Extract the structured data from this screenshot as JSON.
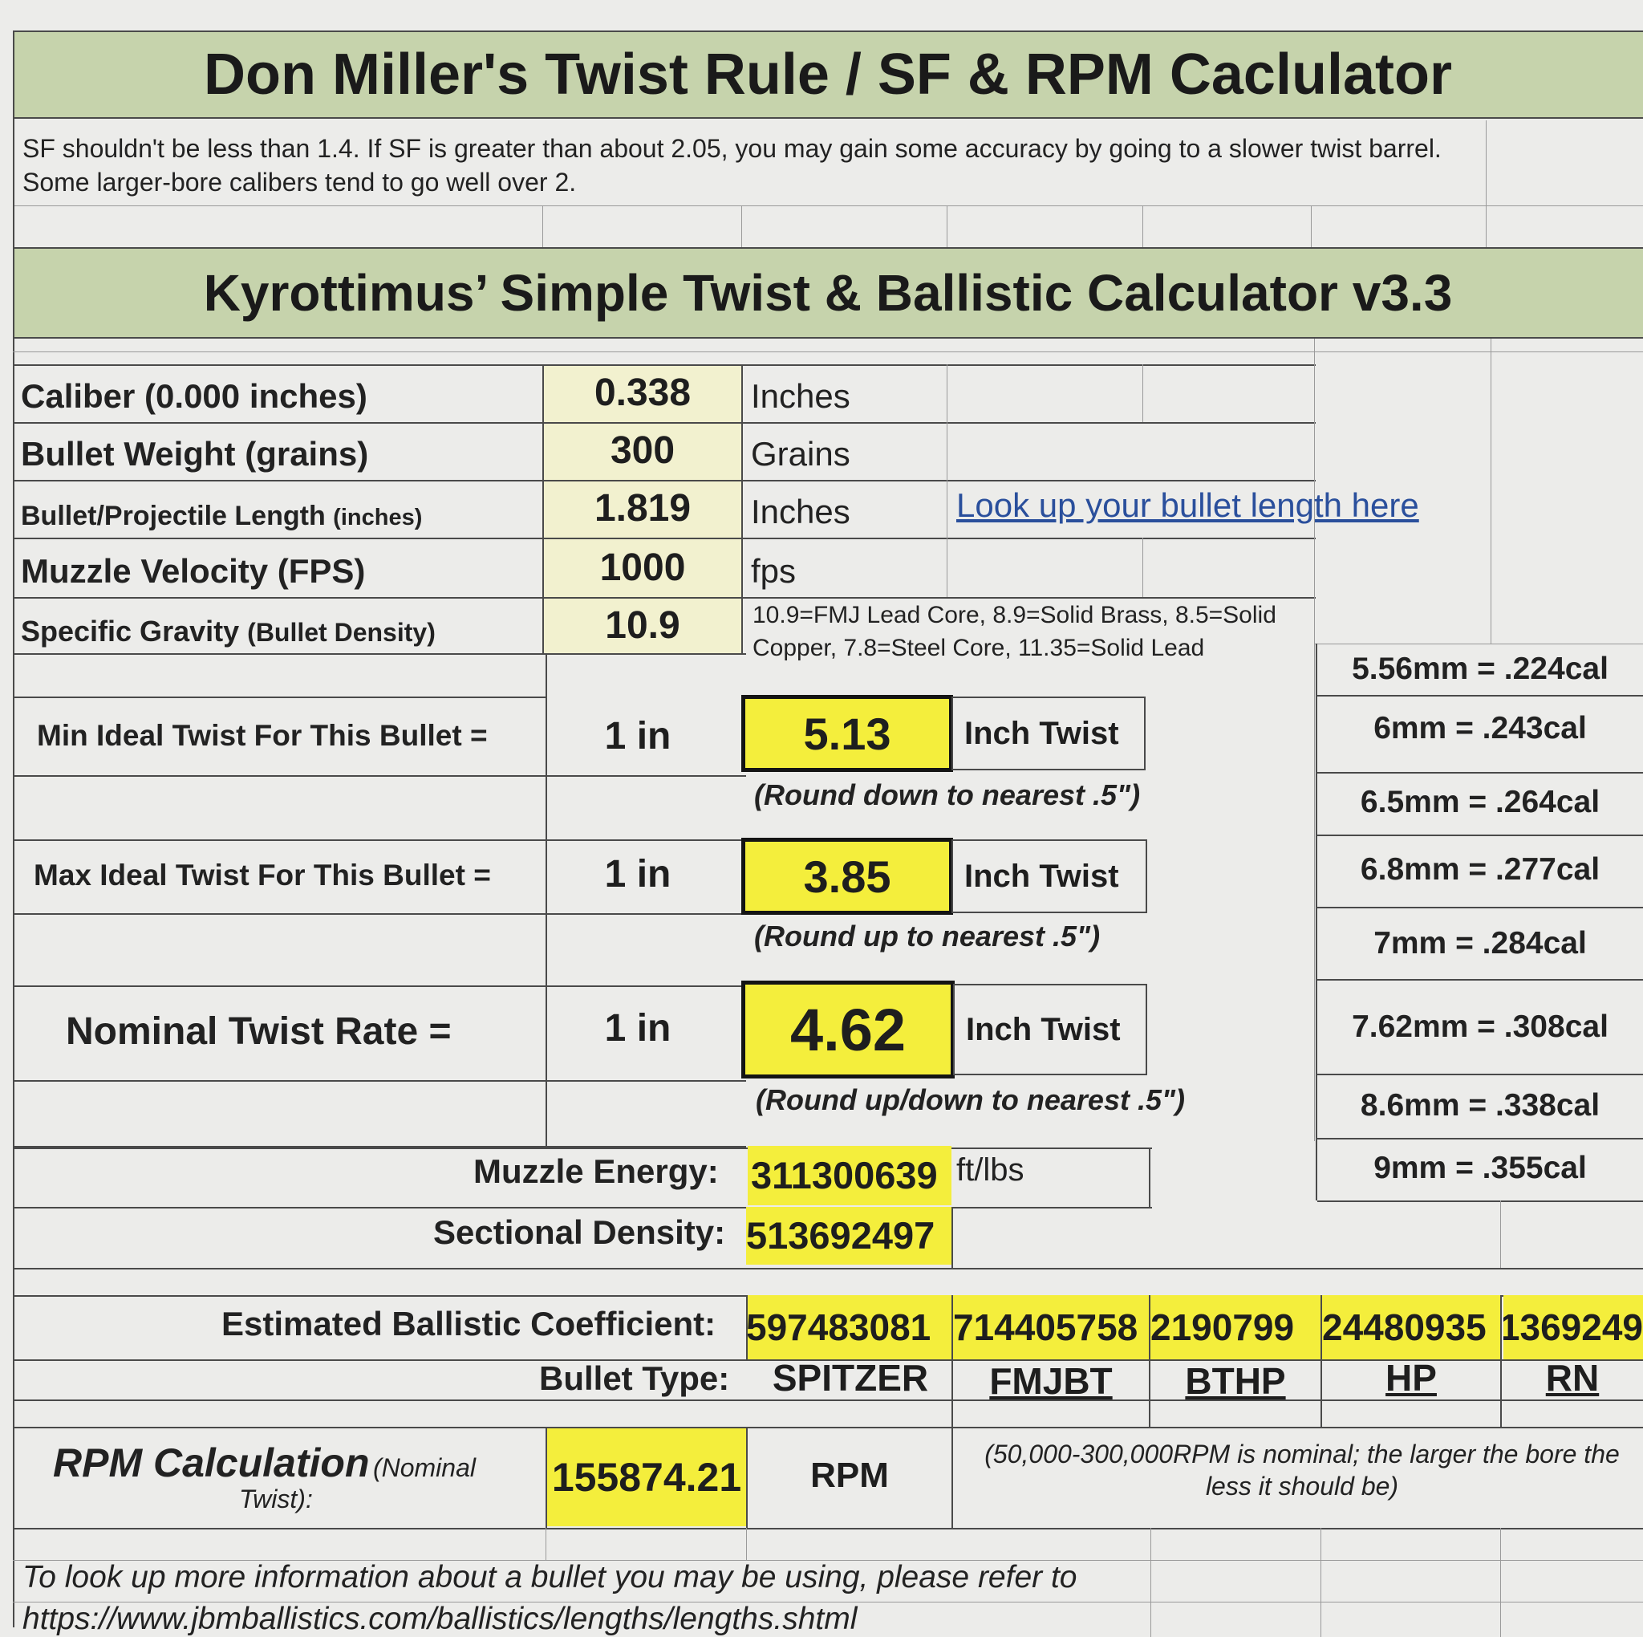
{
  "header": {
    "title": "Don Miller's Twist Rule / SF & RPM Caclulator",
    "note": "SF shouldn't be less than 1.4.  If SF is greater than about 2.05, you may gain some accuracy by going to a slower twist barrel.  Some larger-bore calibers tend to go well over 2."
  },
  "calculator": {
    "title": "Kyrottimus’ Simple Twist & Ballistic Calculator v3.3"
  },
  "inputs": {
    "caliber": {
      "label": "Caliber (0.000 inches)",
      "value": "0.338",
      "unit": "Inches"
    },
    "weight": {
      "label": "Bullet Weight (grains)",
      "value": "300",
      "unit": "Grains"
    },
    "length": {
      "label": "Bullet/Projectile Length",
      "label_small": "(inches)",
      "value": "1.819",
      "unit": "Inches",
      "link": "Look up your bullet length here"
    },
    "velocity": {
      "label": "Muzzle Velocity (FPS)",
      "value": "1000",
      "unit": "fps"
    },
    "gravity": {
      "label": "Specific Gravity",
      "label_small": "(Bullet Density)",
      "value": "10.9",
      "note": "10.9=FMJ Lead Core, 8.9=Solid Brass, 8.5=Solid Copper, 7.8=Steel Core, 11.35=Solid Lead"
    }
  },
  "twist": {
    "min": {
      "label": "Min Ideal Twist For This Bullet =",
      "prefix": "1 in",
      "value": "5.13",
      "unit": "Inch Twist",
      "note": "(Round down to nearest .5\")"
    },
    "max": {
      "label": "Max Ideal Twist For This Bullet =",
      "prefix": "1 in",
      "value": "3.85",
      "unit": "Inch Twist",
      "note": "(Round up to nearest .5\")"
    },
    "nominal": {
      "label": "Nominal Twist Rate =",
      "prefix": "1 in",
      "value": "4.62",
      "unit": "Inch Twist",
      "note": "(Round up/down to nearest .5\")"
    }
  },
  "conversions": [
    "5.56mm = .224cal",
    "6mm = .243cal",
    "6.5mm = .264cal",
    "6.8mm = .277cal",
    "7mm = .284cal",
    "7.62mm = .308cal",
    "8.6mm = .338cal",
    "9mm = .355cal"
  ],
  "energy": {
    "label": "Muzzle Energy:",
    "value": "311300639",
    "unit": "ft/lbs"
  },
  "density": {
    "label": "Sectional Density:",
    "value": "513692497"
  },
  "bc": {
    "label": "Estimated Ballistic Coefficient:",
    "values": [
      "597483081",
      "714405758",
      "2190799",
      "24480935",
      "1369249"
    ]
  },
  "bullet_type": {
    "label": "Bullet Type:",
    "types": [
      "SPITZER",
      "FMJBT",
      "BTHP",
      "HP",
      "RN"
    ]
  },
  "rpm": {
    "label": "RPM Calculation",
    "label_small": "(Nominal",
    "label_small2": "Twist):",
    "value": "155874.21",
    "unit": "RPM",
    "note": "(50,000-300,000RPM is nominal; the larger the bore the less it should be)"
  },
  "footer": {
    "line1": "To look up more information about a bullet you may be using, please refer to",
    "line2": "https://www.jbmballistics.com/ballistics/lengths/lengths.shtml"
  }
}
